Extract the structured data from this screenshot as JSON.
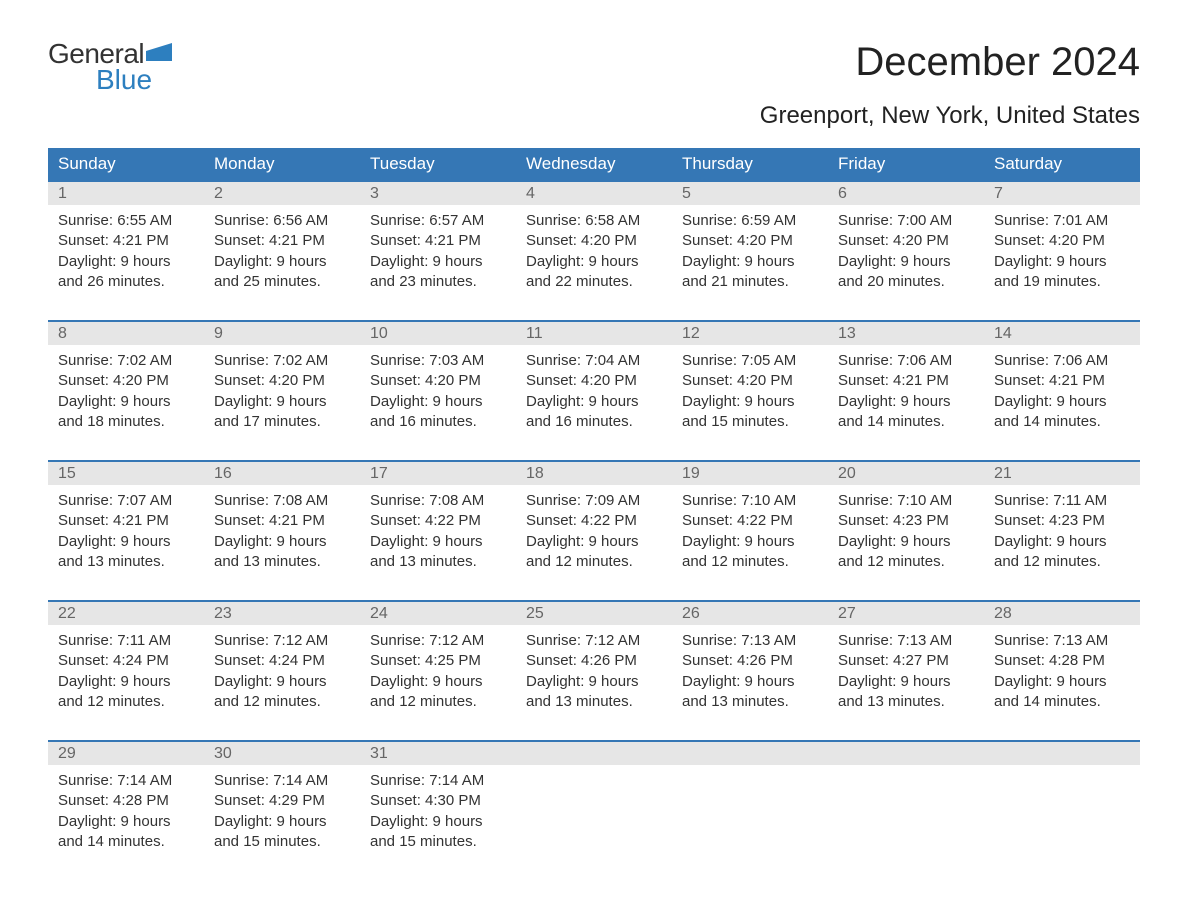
{
  "logo": {
    "word1": "General",
    "word2": "Blue"
  },
  "title": "December 2024",
  "location": "Greenport, New York, United States",
  "colors": {
    "header_bg": "#3577b5",
    "header_text": "#ffffff",
    "daynum_bg": "#e6e6e6",
    "daynum_text": "#666666",
    "body_text": "#333333",
    "week_rule": "#3577b5",
    "logo_blue": "#2d7fbf",
    "page_bg": "#ffffff"
  },
  "typography": {
    "title_fontsize": 40,
    "location_fontsize": 24,
    "header_fontsize": 17,
    "daynum_fontsize": 16,
    "body_fontsize": 15,
    "logo_fontsize": 28
  },
  "day_headers": [
    "Sunday",
    "Monday",
    "Tuesday",
    "Wednesday",
    "Thursday",
    "Friday",
    "Saturday"
  ],
  "weeks": [
    [
      {
        "num": "1",
        "sunrise": "Sunrise: 6:55 AM",
        "sunset": "Sunset: 4:21 PM",
        "dl1": "Daylight: 9 hours",
        "dl2": "and 26 minutes."
      },
      {
        "num": "2",
        "sunrise": "Sunrise: 6:56 AM",
        "sunset": "Sunset: 4:21 PM",
        "dl1": "Daylight: 9 hours",
        "dl2": "and 25 minutes."
      },
      {
        "num": "3",
        "sunrise": "Sunrise: 6:57 AM",
        "sunset": "Sunset: 4:21 PM",
        "dl1": "Daylight: 9 hours",
        "dl2": "and 23 minutes."
      },
      {
        "num": "4",
        "sunrise": "Sunrise: 6:58 AM",
        "sunset": "Sunset: 4:20 PM",
        "dl1": "Daylight: 9 hours",
        "dl2": "and 22 minutes."
      },
      {
        "num": "5",
        "sunrise": "Sunrise: 6:59 AM",
        "sunset": "Sunset: 4:20 PM",
        "dl1": "Daylight: 9 hours",
        "dl2": "and 21 minutes."
      },
      {
        "num": "6",
        "sunrise": "Sunrise: 7:00 AM",
        "sunset": "Sunset: 4:20 PM",
        "dl1": "Daylight: 9 hours",
        "dl2": "and 20 minutes."
      },
      {
        "num": "7",
        "sunrise": "Sunrise: 7:01 AM",
        "sunset": "Sunset: 4:20 PM",
        "dl1": "Daylight: 9 hours",
        "dl2": "and 19 minutes."
      }
    ],
    [
      {
        "num": "8",
        "sunrise": "Sunrise: 7:02 AM",
        "sunset": "Sunset: 4:20 PM",
        "dl1": "Daylight: 9 hours",
        "dl2": "and 18 minutes."
      },
      {
        "num": "9",
        "sunrise": "Sunrise: 7:02 AM",
        "sunset": "Sunset: 4:20 PM",
        "dl1": "Daylight: 9 hours",
        "dl2": "and 17 minutes."
      },
      {
        "num": "10",
        "sunrise": "Sunrise: 7:03 AM",
        "sunset": "Sunset: 4:20 PM",
        "dl1": "Daylight: 9 hours",
        "dl2": "and 16 minutes."
      },
      {
        "num": "11",
        "sunrise": "Sunrise: 7:04 AM",
        "sunset": "Sunset: 4:20 PM",
        "dl1": "Daylight: 9 hours",
        "dl2": "and 16 minutes."
      },
      {
        "num": "12",
        "sunrise": "Sunrise: 7:05 AM",
        "sunset": "Sunset: 4:20 PM",
        "dl1": "Daylight: 9 hours",
        "dl2": "and 15 minutes."
      },
      {
        "num": "13",
        "sunrise": "Sunrise: 7:06 AM",
        "sunset": "Sunset: 4:21 PM",
        "dl1": "Daylight: 9 hours",
        "dl2": "and 14 minutes."
      },
      {
        "num": "14",
        "sunrise": "Sunrise: 7:06 AM",
        "sunset": "Sunset: 4:21 PM",
        "dl1": "Daylight: 9 hours",
        "dl2": "and 14 minutes."
      }
    ],
    [
      {
        "num": "15",
        "sunrise": "Sunrise: 7:07 AM",
        "sunset": "Sunset: 4:21 PM",
        "dl1": "Daylight: 9 hours",
        "dl2": "and 13 minutes."
      },
      {
        "num": "16",
        "sunrise": "Sunrise: 7:08 AM",
        "sunset": "Sunset: 4:21 PM",
        "dl1": "Daylight: 9 hours",
        "dl2": "and 13 minutes."
      },
      {
        "num": "17",
        "sunrise": "Sunrise: 7:08 AM",
        "sunset": "Sunset: 4:22 PM",
        "dl1": "Daylight: 9 hours",
        "dl2": "and 13 minutes."
      },
      {
        "num": "18",
        "sunrise": "Sunrise: 7:09 AM",
        "sunset": "Sunset: 4:22 PM",
        "dl1": "Daylight: 9 hours",
        "dl2": "and 12 minutes."
      },
      {
        "num": "19",
        "sunrise": "Sunrise: 7:10 AM",
        "sunset": "Sunset: 4:22 PM",
        "dl1": "Daylight: 9 hours",
        "dl2": "and 12 minutes."
      },
      {
        "num": "20",
        "sunrise": "Sunrise: 7:10 AM",
        "sunset": "Sunset: 4:23 PM",
        "dl1": "Daylight: 9 hours",
        "dl2": "and 12 minutes."
      },
      {
        "num": "21",
        "sunrise": "Sunrise: 7:11 AM",
        "sunset": "Sunset: 4:23 PM",
        "dl1": "Daylight: 9 hours",
        "dl2": "and 12 minutes."
      }
    ],
    [
      {
        "num": "22",
        "sunrise": "Sunrise: 7:11 AM",
        "sunset": "Sunset: 4:24 PM",
        "dl1": "Daylight: 9 hours",
        "dl2": "and 12 minutes."
      },
      {
        "num": "23",
        "sunrise": "Sunrise: 7:12 AM",
        "sunset": "Sunset: 4:24 PM",
        "dl1": "Daylight: 9 hours",
        "dl2": "and 12 minutes."
      },
      {
        "num": "24",
        "sunrise": "Sunrise: 7:12 AM",
        "sunset": "Sunset: 4:25 PM",
        "dl1": "Daylight: 9 hours",
        "dl2": "and 12 minutes."
      },
      {
        "num": "25",
        "sunrise": "Sunrise: 7:12 AM",
        "sunset": "Sunset: 4:26 PM",
        "dl1": "Daylight: 9 hours",
        "dl2": "and 13 minutes."
      },
      {
        "num": "26",
        "sunrise": "Sunrise: 7:13 AM",
        "sunset": "Sunset: 4:26 PM",
        "dl1": "Daylight: 9 hours",
        "dl2": "and 13 minutes."
      },
      {
        "num": "27",
        "sunrise": "Sunrise: 7:13 AM",
        "sunset": "Sunset: 4:27 PM",
        "dl1": "Daylight: 9 hours",
        "dl2": "and 13 minutes."
      },
      {
        "num": "28",
        "sunrise": "Sunrise: 7:13 AM",
        "sunset": "Sunset: 4:28 PM",
        "dl1": "Daylight: 9 hours",
        "dl2": "and 14 minutes."
      }
    ],
    [
      {
        "num": "29",
        "sunrise": "Sunrise: 7:14 AM",
        "sunset": "Sunset: 4:28 PM",
        "dl1": "Daylight: 9 hours",
        "dl2": "and 14 minutes."
      },
      {
        "num": "30",
        "sunrise": "Sunrise: 7:14 AM",
        "sunset": "Sunset: 4:29 PM",
        "dl1": "Daylight: 9 hours",
        "dl2": "and 15 minutes."
      },
      {
        "num": "31",
        "sunrise": "Sunrise: 7:14 AM",
        "sunset": "Sunset: 4:30 PM",
        "dl1": "Daylight: 9 hours",
        "dl2": "and 15 minutes."
      },
      null,
      null,
      null,
      null
    ]
  ]
}
